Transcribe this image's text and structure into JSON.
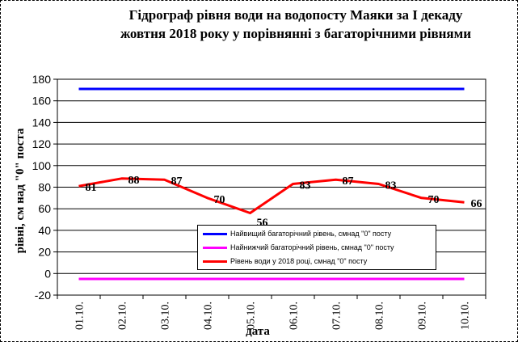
{
  "chart_data": {
    "type": "line",
    "title_line1": "Гідрограф рівня води на водопосту Маяки за І декаду",
    "title_line2": "жовтня 2018 року у порівнянні з багаторічними рівнями",
    "xlabel": "дата",
    "ylabel": "рівні, см над \"0\" поста",
    "ylim": [
      -20,
      180
    ],
    "yticks": [
      "-20",
      "0",
      "20",
      "40",
      "60",
      "80",
      "100",
      "120",
      "140",
      "160",
      "180"
    ],
    "categories": [
      "01.10.",
      "02.10.",
      "03.10.",
      "04.10.",
      "05.10.",
      "06.10.",
      "07.10.",
      "08.10.",
      "09.10.",
      "10.10."
    ],
    "grid": true,
    "legend_position": "bottom-center",
    "series": [
      {
        "name": "Найвищий багаторічний рівень, смнад \"0\" посту",
        "color": "#0000FF",
        "values": [
          171,
          171,
          171,
          171,
          171,
          171,
          171,
          171,
          171,
          171
        ],
        "labels": []
      },
      {
        "name": "Найнижчий багаторічний рівень, смнад \"0\" посту",
        "color": "#FF00FF",
        "values": [
          -5,
          -5,
          -5,
          -5,
          -5,
          -5,
          -5,
          -5,
          -5,
          -5
        ],
        "labels": []
      },
      {
        "name": "Рівень води у 2018 році, смнад \"0\" посту",
        "color": "#FF0000",
        "values": [
          81,
          88,
          87,
          70,
          56,
          83,
          87,
          83,
          70,
          66
        ],
        "labels": [
          "81",
          "88",
          "87",
          "70",
          "56",
          "83",
          "87",
          "83",
          "70",
          "66"
        ]
      }
    ]
  }
}
